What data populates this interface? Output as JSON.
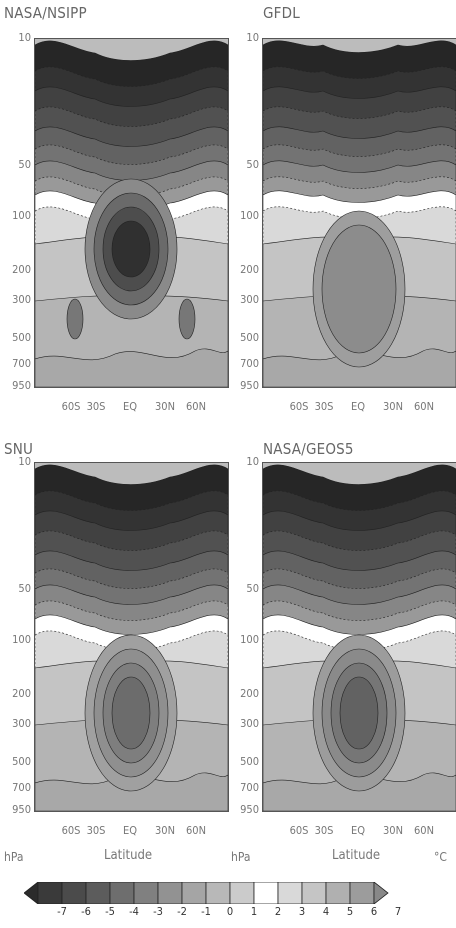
{
  "chart_data": [
    {
      "type": "heatmap",
      "title": "NASA/NSIPP",
      "panel": "top-left",
      "y_ticks": [
        "10",
        "50",
        "100",
        "200",
        "300",
        "500",
        "700",
        "950"
      ],
      "x_ticks": [
        "60S",
        "30S",
        "EQ",
        "30N",
        "60N"
      ],
      "feature": "deep cold core near EQ at 200 hPa"
    },
    {
      "type": "heatmap",
      "title": "GFDL",
      "panel": "top-right",
      "y_ticks": [
        "10",
        "50",
        "100",
        "200",
        "300",
        "500",
        "700",
        "950"
      ],
      "x_ticks": [
        "60S",
        "30S",
        "EQ",
        "30N",
        "60N"
      ]
    },
    {
      "type": "heatmap",
      "title": "SNU",
      "panel": "bottom-left",
      "y_ticks": [
        "10",
        "50",
        "100",
        "200",
        "300",
        "500",
        "700",
        "950"
      ],
      "x_ticks": [
        "60S",
        "30S",
        "EQ",
        "30N",
        "60N"
      ]
    },
    {
      "type": "heatmap",
      "title": "NASA/GEOS5",
      "panel": "bottom-right",
      "y_ticks": [
        "10",
        "50",
        "100",
        "200",
        "300",
        "500",
        "700",
        "950"
      ],
      "x_ticks": [
        "60S",
        "30S",
        "EQ",
        "30N",
        "60N"
      ]
    }
  ],
  "axes": {
    "y_unit": "hPa",
    "x_label": "Latitude",
    "color_unit": "°C"
  },
  "colorbar": {
    "ticks": [
      "-7",
      "-6",
      "-5",
      "-4",
      "-3",
      "-2",
      "-1",
      "0",
      "1",
      "2",
      "3",
      "4",
      "5",
      "6",
      "7"
    ],
    "colors": [
      "#2b2b2b",
      "#3a3a3a",
      "#4b4b4b",
      "#5c5c5c",
      "#6e6e6e",
      "#808080",
      "#929292",
      "#a5a5a5",
      "#b8b8b8",
      "#cbcbcb",
      "#ffffff",
      "#d9d9d9",
      "#c5c5c5",
      "#b0b0b0",
      "#9c9c9c",
      "#888888"
    ]
  }
}
